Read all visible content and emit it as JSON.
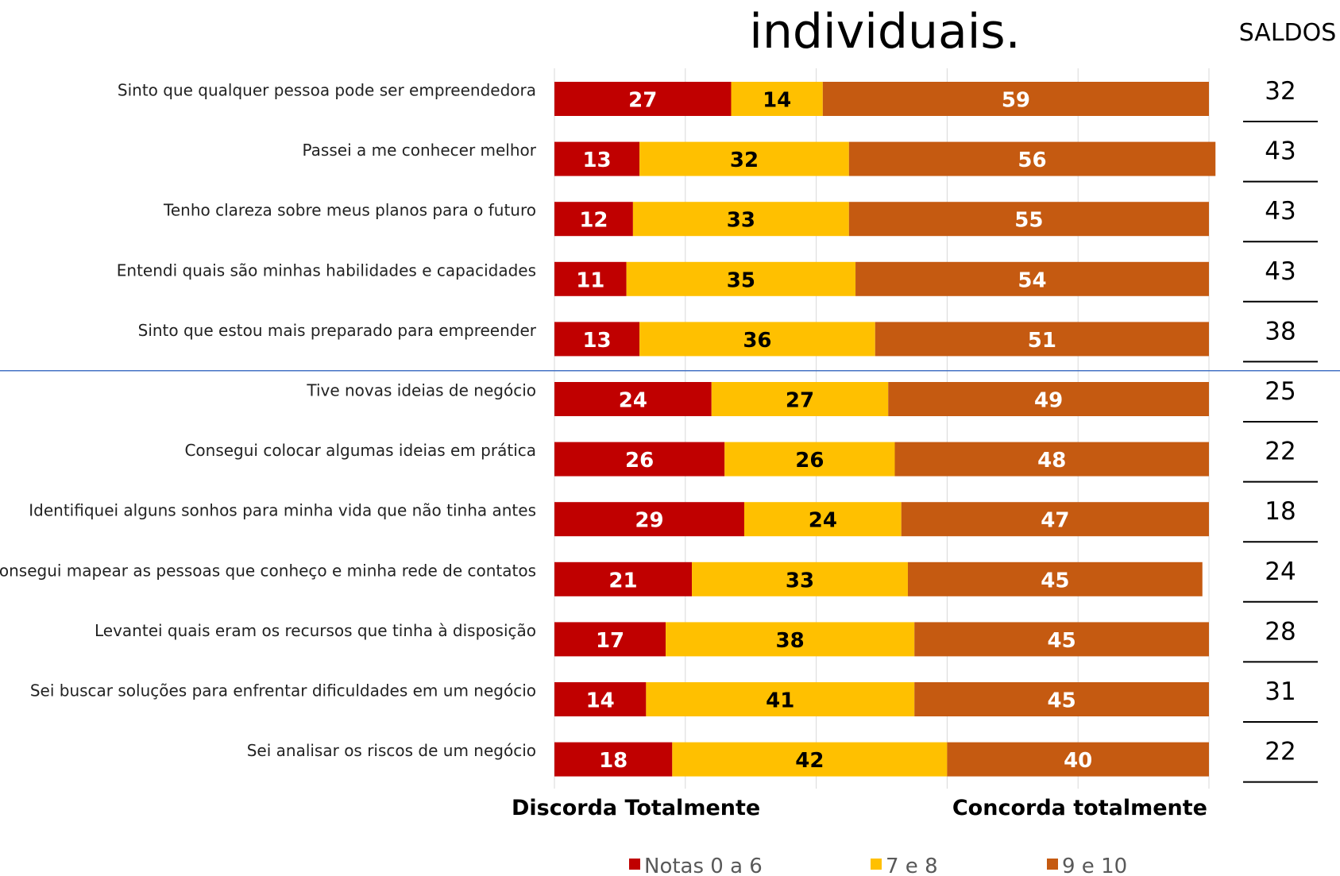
{
  "chart_data": {
    "type": "bar",
    "stacked": true,
    "orientation": "horizontal",
    "title": "individuais.",
    "saldos_header": "SALDOS",
    "categories": [
      "Sinto que qualquer pessoa pode ser empreendedora",
      "Passei a me conhecer melhor",
      "Tenho clareza sobre meus planos para o futuro",
      "Entendi quais são minhas habilidades e capacidades",
      "Sinto que estou mais preparado para empreender",
      "Tive novas ideias de negócio",
      "Consegui colocar algumas ideias em prática",
      "Identifiquei alguns sonhos para minha vida que não tinha antes",
      "Consegui mapear as pessoas que conheço e minha rede de contatos",
      "Levantei quais eram os recursos que tinha à disposição",
      "Sei buscar soluções para enfrentar dificuldades em um negócio",
      "Sei analisar os riscos de um negócio"
    ],
    "series": [
      {
        "name": "Notas 0 a 6",
        "color": "#C00000",
        "label_color": "#FFFFFF",
        "values": [
          27,
          13,
          12,
          11,
          13,
          24,
          26,
          29,
          21,
          17,
          14,
          18
        ]
      },
      {
        "name": "7 e 8",
        "color": "#FFC000",
        "label_color": "#000000",
        "values": [
          14,
          32,
          33,
          35,
          36,
          27,
          26,
          24,
          33,
          38,
          41,
          42
        ]
      },
      {
        "name": "9 e 10",
        "color": "#C55A11",
        "label_color": "#FFFFFF",
        "values": [
          59,
          56,
          55,
          54,
          51,
          49,
          48,
          47,
          45,
          45,
          45,
          40
        ]
      }
    ],
    "saldos": [
      32,
      43,
      43,
      43,
      38,
      25,
      22,
      18,
      24,
      28,
      31,
      22
    ],
    "xlim": [
      0,
      100
    ],
    "axis_left_label": "Discorda Totalmente",
    "axis_right_label": "Concorda totalmente",
    "divider_after_index": 4,
    "divider_color": "#4472C4",
    "grid": true,
    "legend_position": "bottom"
  }
}
